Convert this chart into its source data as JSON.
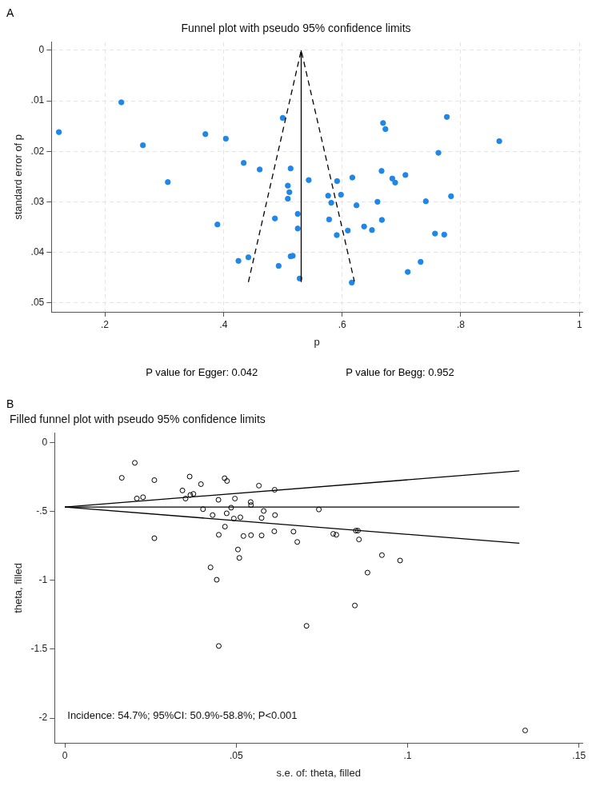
{
  "chart_data": [
    {
      "type": "scatter",
      "title": "Funnel plot with pseudo 95% confidence limits",
      "xlabel": "p",
      "ylabel": "standard error of p",
      "annotations": [
        "A",
        "P value for Egger: 0.042",
        "P value for Begg: 0.952"
      ],
      "xlim": [
        0.11,
        1.005
      ],
      "ylim": [
        0.0518,
        -0.0016
      ],
      "xticks": [
        {
          "value": 0.2,
          "label": ".2"
        },
        {
          "value": 0.4,
          "label": ".4"
        },
        {
          "value": 0.6,
          "label": ".6"
        },
        {
          "value": 0.8,
          "label": ".8"
        },
        1
      ],
      "yticks": [
        0,
        {
          "value": 0.01,
          "label": ".01"
        },
        {
          "value": 0.02,
          "label": ".02"
        },
        {
          "value": 0.03,
          "label": ".03"
        },
        {
          "value": 0.04,
          "label": ".04"
        },
        {
          "value": 0.05,
          "label": ".05"
        }
      ],
      "grid": true,
      "legend": false,
      "series": [
        {
          "type": "line",
          "color": "#000000",
          "marker": "none",
          "line_style": "dashed",
          "x": [
            0.442,
            0.531,
            0.6207
          ],
          "values": [
            0.0459,
            0,
            0.0458
          ]
        },
        {
          "type": "line",
          "color": "#000000",
          "marker": "none",
          "line_style": "solid",
          "x": [
            0.531,
            0.531
          ],
          "values": [
            0.0459,
            0
          ]
        },
        {
          "type": "scatter",
          "color": "#1f87e8",
          "marker": "circle",
          "x": [
            0.1226,
            0.2279,
            0.2642,
            0.3062,
            0.3695,
            0.404,
            0.4341,
            0.4611,
            0.4999,
            0.5132,
            0.5437,
            0.5085,
            0.5111,
            0.5085,
            0.5252,
            0.4867,
            0.5252,
            0.3898,
            0.4252,
            0.442,
            0.5132,
            0.5168,
            0.493,
            0.5284,
            0.669,
            0.673,
            0.7765,
            0.8649,
            0.7623,
            0.5915,
            0.6172,
            0.6665,
            0.6846,
            0.6894,
            0.7067,
            0.5764,
            0.5817,
            0.5981,
            0.6242,
            0.6596,
            0.7411,
            0.7836,
            0.5781,
            0.591,
            0.6096,
            0.637,
            0.6503,
            0.667,
            0.7566,
            0.7721,
            0.7323,
            0.7106,
            0.6163
          ],
          "values": [
            0.0162,
            0.0103,
            0.0188,
            0.0261,
            0.0166,
            0.0175,
            0.0223,
            0.0236,
            0.0134,
            0.0234,
            0.0257,
            0.0268,
            0.0281,
            0.0294,
            0.0324,
            0.0333,
            0.0353,
            0.0345,
            0.0417,
            0.041,
            0.0408,
            0.0407,
            0.0427,
            0.0452,
            0.0144,
            0.0156,
            0.0132,
            0.018,
            0.0203,
            0.0259,
            0.0252,
            0.0239,
            0.0254,
            0.0262,
            0.0247,
            0.0288,
            0.0302,
            0.0286,
            0.0307,
            0.03,
            0.0299,
            0.0289,
            0.0335,
            0.0366,
            0.0357,
            0.0349,
            0.0356,
            0.0336,
            0.0363,
            0.0365,
            0.0419,
            0.0439,
            0.046
          ]
        }
      ]
    },
    {
      "type": "scatter",
      "title": "Filled funnel plot with pseudo 95% confidence limits",
      "xlabel": "s.e. of: theta, filled",
      "ylabel": "theta, filled",
      "annotations": [
        "B",
        "Incidence: 54.7%; 95%CI: 50.9%-58.8%; P<0.001"
      ],
      "xlim": [
        -0.003,
        0.151
      ],
      "ylim": [
        -2.18,
        0.07
      ],
      "xticks": [
        0,
        {
          "value": 0.05,
          "label": ".05"
        },
        {
          "value": 0.1,
          "label": ".1"
        },
        {
          "value": 0.15,
          "label": ".15"
        }
      ],
      "yticks": [
        0,
        {
          "value": -0.5,
          "label": "-.5"
        },
        -1,
        -1.5,
        -2
      ],
      "grid": false,
      "legend": false,
      "series": [
        {
          "type": "line",
          "color": "#000000",
          "marker": "none",
          "line_style": "solid",
          "x": [
            0,
            0.1326
          ],
          "values": [
            -0.466,
            -0.204
          ]
        },
        {
          "type": "line",
          "color": "#000000",
          "marker": "none",
          "line_style": "solid",
          "x": [
            0,
            0.1326
          ],
          "values": [
            -0.466,
            -0.466
          ]
        },
        {
          "type": "line",
          "color": "#000000",
          "marker": "none",
          "line_style": "solid",
          "x": [
            0,
            0.1326
          ],
          "values": [
            -0.466,
            -0.73
          ]
        },
        {
          "type": "scatter",
          "color": "#000000",
          "marker": "circle",
          "x": [
            0.0204,
            0.0166,
            0.0261,
            0.021,
            0.0228,
            0.0261,
            0.0343,
            0.0364,
            0.0352,
            0.0366,
            0.0375,
            0.0397,
            0.0403,
            0.0431,
            0.0448,
            0.0466,
            0.0473,
            0.0472,
            0.0467,
            0.0449,
            0.0425,
            0.0443,
            0.0485,
            0.0496,
            0.0493,
            0.0512,
            0.0505,
            0.0509,
            0.0521,
            0.0543,
            0.0574,
            0.0542,
            0.0543,
            0.0566,
            0.058,
            0.0574,
            0.0612,
            0.0613,
            0.0611,
            0.0667,
            0.0678,
            0.0741,
            0.0783,
            0.0792,
            0.0849,
            0.0855,
            0.0858,
            0.0925,
            0.0978,
            0.0883,
            0.0846,
            0.0705,
            0.0449,
            0.1343
          ],
          "values": [
            -0.145,
            -0.254,
            -0.271,
            -0.404,
            -0.395,
            -0.693,
            -0.346,
            -0.245,
            -0.405,
            -0.379,
            -0.371,
            -0.3,
            -0.482,
            -0.525,
            -0.414,
            -0.257,
            -0.277,
            -0.512,
            -0.609,
            -0.668,
            -0.905,
            -0.995,
            -0.471,
            -0.405,
            -0.55,
            -0.541,
            -0.775,
            -0.836,
            -0.677,
            -0.671,
            -0.673,
            -0.43,
            -0.452,
            -0.311,
            -0.495,
            -0.546,
            -0.341,
            -0.525,
            -0.643,
            -0.645,
            -0.72,
            -0.484,
            -0.661,
            -0.668,
            -0.638,
            -0.638,
            -0.702,
            -0.816,
            -0.855,
            -0.943,
            -1.182,
            -1.33,
            -1.476,
            -2.09
          ]
        }
      ]
    }
  ]
}
